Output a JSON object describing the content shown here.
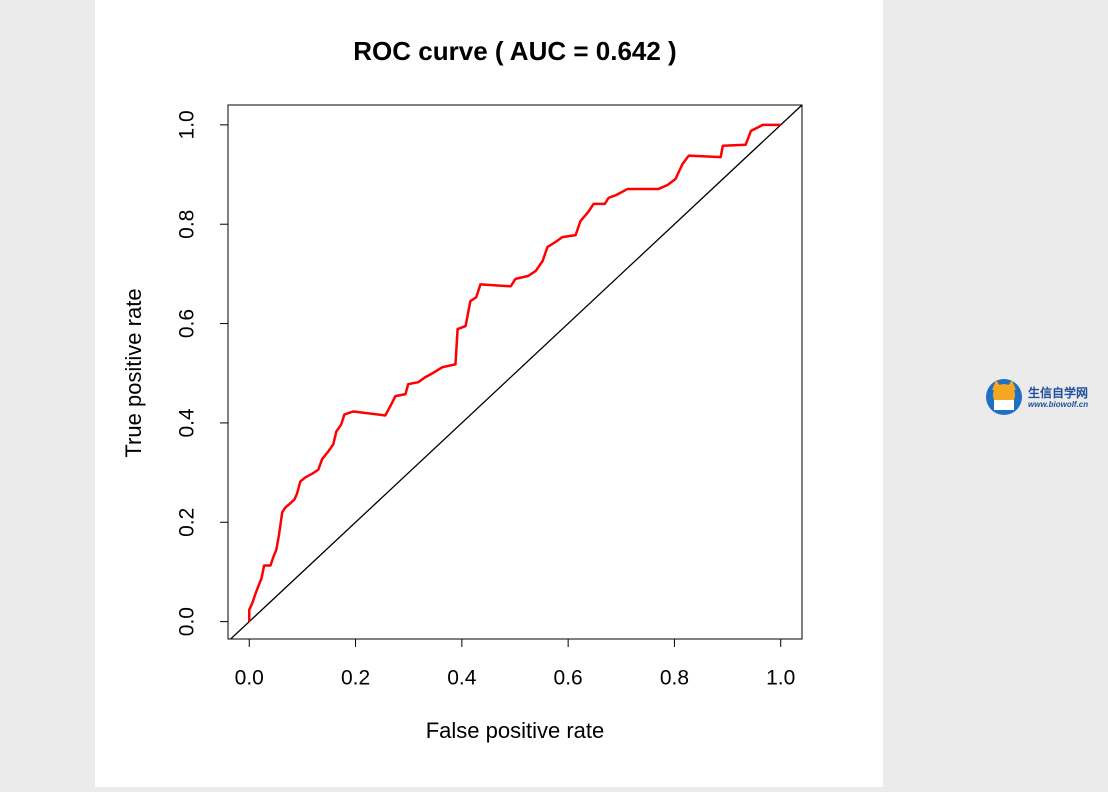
{
  "chart_data": {
    "type": "line",
    "title": "ROC curve ( AUC =  0.642 )",
    "x_label": "False positive rate",
    "y_label": "True positive rate",
    "x": [
      0,
      0,
      0.006,
      0.011,
      0.017,
      0.023,
      0.028,
      0.04,
      0.045,
      0.051,
      0.056,
      0.062,
      0.068,
      0.075,
      0.085,
      0.09,
      0.096,
      0.105,
      0.119,
      0.13,
      0.137,
      0.149,
      0.158,
      0.164,
      0.173,
      0.179,
      0.196,
      0.256,
      0.266,
      0.275,
      0.294,
      0.299,
      0.318,
      0.331,
      0.345,
      0.363,
      0.388,
      0.392,
      0.407,
      0.416,
      0.427,
      0.435,
      0.492,
      0.501,
      0.525,
      0.539,
      0.552,
      0.561,
      0.576,
      0.589,
      0.614,
      0.623,
      0.638,
      0.648,
      0.669,
      0.676,
      0.691,
      0.712,
      0.77,
      0.787,
      0.802,
      0.815,
      0.827,
      0.887,
      0.891,
      0.934,
      0.944,
      0.959,
      0.966,
      1.0
    ],
    "values": [
      0,
      0.024,
      0.038,
      0.054,
      0.071,
      0.087,
      0.113,
      0.113,
      0.129,
      0.145,
      0.175,
      0.22,
      0.23,
      0.236,
      0.246,
      0.258,
      0.282,
      0.29,
      0.298,
      0.306,
      0.327,
      0.343,
      0.357,
      0.383,
      0.397,
      0.417,
      0.423,
      0.415,
      0.435,
      0.454,
      0.458,
      0.478,
      0.482,
      0.492,
      0.5,
      0.512,
      0.518,
      0.589,
      0.595,
      0.645,
      0.653,
      0.679,
      0.675,
      0.69,
      0.696,
      0.706,
      0.726,
      0.754,
      0.764,
      0.774,
      0.778,
      0.806,
      0.825,
      0.841,
      0.841,
      0.853,
      0.859,
      0.871,
      0.871,
      0.879,
      0.891,
      0.921,
      0.938,
      0.935,
      0.958,
      0.96,
      0.988,
      0.996,
      1.0,
      1.0
    ],
    "color": "#ff0000",
    "xlim": [
      -0.04,
      1.04
    ],
    "ylim": [
      -0.035,
      1.04
    ],
    "xticks": [
      {
        "value": 0,
        "label": "0.0"
      },
      0.2,
      0.4,
      0.6,
      0.8,
      {
        "value": 1,
        "label": "1.0"
      }
    ],
    "yticks": [
      {
        "value": 0,
        "label": "0.0"
      },
      0.2,
      0.4,
      0.6,
      0.8,
      {
        "value": 1,
        "label": "1.0"
      }
    ],
    "reference_diagonal": true
  },
  "watermark": {
    "name": "生信自学网",
    "url": "www.biowolf.cn"
  }
}
